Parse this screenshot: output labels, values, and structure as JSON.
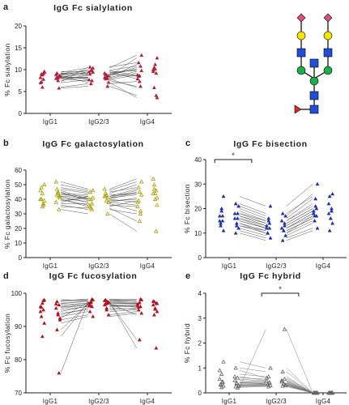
{
  "glycan_diagram": {
    "sialic_acid_color": "#e0507a",
    "galactose_color": "#f5e400",
    "glcnac_color": "#1f4fd8",
    "mannose_color": "#18b04a",
    "fucose_color": "#e0281e"
  },
  "chart_data": [
    {
      "type": "scatter",
      "panel": "a",
      "title": "IgG Fc sialylation",
      "ylabel": "% Fc sialylation",
      "categories": [
        "IgG1",
        "IgG2/3",
        "IgG4"
      ],
      "yticks": [
        0,
        5,
        10,
        15,
        20
      ],
      "ylim": [
        0,
        20
      ],
      "color": "#b0203a",
      "marker": "triangle",
      "series": [
        {
          "values": [
            9.6,
            9.2,
            8.8,
            8.5,
            8.2,
            8.0,
            7.8,
            7.5,
            9.0,
            8.7,
            9.4,
            8.3,
            6.0,
            5.8,
            7.0,
            8.9,
            9.1,
            8.1,
            7.2,
            8.4
          ]
        },
        {
          "values": [
            9.4,
            8.9,
            9.8,
            8.0,
            9.5,
            8.2,
            7.5,
            8.8,
            9.0,
            8.6,
            10.4,
            7.9,
            6.8,
            6.2,
            7.7,
            9.2,
            9.9,
            8.3,
            10.6,
            7.1
          ]
        },
        {
          "values": [
            9.8,
            10.5,
            8.6,
            9.2,
            7.9,
            9.6,
            6.2,
            10.2,
            8.5,
            12.7,
            13.3,
            5.9,
            7.3,
            4.1,
            8.8,
            10.0,
            10.8,
            11.2,
            11.6,
            3.6
          ]
        }
      ]
    },
    {
      "type": "scatter",
      "panel": "b",
      "title": "IgG Fc galactosylation",
      "ylabel": "% Fc galactosylation",
      "categories": [
        "IgG1",
        "IgG2/3",
        "IgG4"
      ],
      "yticks": [
        0,
        10,
        20,
        30,
        40,
        50,
        60
      ],
      "ylim": [
        0,
        60
      ],
      "color": "#a8a000",
      "marker": "open-triangle",
      "series": [
        {
          "values": [
            50,
            47,
            44,
            42,
            40,
            38,
            36,
            45,
            48,
            41,
            39,
            43,
            35,
            33,
            46,
            52,
            37,
            44,
            40,
            42
          ]
        },
        {
          "values": [
            46,
            44,
            40,
            41,
            36,
            42,
            33,
            39,
            45,
            38,
            41,
            42,
            34,
            30,
            40,
            47,
            37,
            43,
            35,
            38
          ]
        },
        {
          "values": [
            52,
            50,
            45,
            46,
            35,
            44,
            30,
            40,
            48,
            36,
            43,
            47,
            25,
            18,
            38,
            54,
            32,
            44,
            39,
            41
          ]
        }
      ]
    },
    {
      "type": "scatter",
      "panel": "c",
      "title": "IgG Fc bisection",
      "ylabel": "% Fc bisection",
      "categories": [
        "IgG1",
        "IgG2/3",
        "IgG4"
      ],
      "yticks": [
        0,
        10,
        20,
        30,
        40
      ],
      "ylim": [
        0,
        40
      ],
      "color": "#1f2fa8",
      "marker": "triangle",
      "significance": [
        {
          "from": 0,
          "to": 1,
          "label": "*"
        }
      ],
      "series": [
        {
          "values": [
            25,
            22,
            19,
            18,
            17,
            16,
            15,
            14,
            13,
            12,
            11,
            10,
            20,
            16,
            15,
            18,
            17,
            13,
            14,
            21
          ]
        },
        {
          "values": [
            21,
            18,
            15,
            14,
            13,
            12,
            12,
            11,
            10,
            9,
            8,
            7,
            16,
            13,
            12,
            15,
            14,
            11,
            10,
            17
          ]
        },
        {
          "values": [
            30,
            25,
            21,
            20,
            19,
            18,
            17,
            16,
            15,
            14,
            12,
            11,
            24,
            19,
            18,
            22,
            20,
            16,
            17,
            26
          ]
        }
      ]
    },
    {
      "type": "scatter",
      "panel": "d",
      "title": "IgG Fc fucosylation",
      "ylabel": "% Fc fucosylation",
      "categories": [
        "IgG1",
        "IgG2/3",
        "IgG4"
      ],
      "yticks": [
        70,
        80,
        90,
        100
      ],
      "ylim": [
        70,
        100
      ],
      "color": "#b0101e",
      "marker": "triangle",
      "series": [
        {
          "values": [
            98,
            97.5,
            97,
            96.5,
            96,
            95.5,
            95,
            94,
            93,
            92,
            91,
            89,
            87,
            76,
            94.5,
            96.8,
            97.8,
            93.5,
            95.8,
            92.5
          ]
        },
        {
          "values": [
            98,
            98,
            97.5,
            97,
            97,
            96.5,
            96,
            95,
            94.5,
            93.5,
            93,
            96.8,
            97.2,
            97.5,
            96.2,
            97.8,
            98.2,
            95.5,
            96.5,
            97.3
          ]
        },
        {
          "values": [
            98,
            97.5,
            97.2,
            97,
            96.8,
            96.5,
            96,
            95.5,
            95,
            94.5,
            94,
            93.5,
            86,
            83.5,
            96.2,
            97.6,
            98.2,
            95.2,
            95.8,
            96.9
          ]
        }
      ]
    },
    {
      "type": "scatter",
      "panel": "e",
      "title": "IgG Fc hybrid",
      "ylabel": "% Fc hybrid",
      "categories": [
        "IgG1",
        "IgG2/3",
        "IgG4"
      ],
      "yticks": [
        0,
        1,
        2,
        3,
        4
      ],
      "ylim": [
        0,
        4
      ],
      "color": "#666666",
      "marker": "open-triangle",
      "significance": [
        {
          "from": 1,
          "to": 2,
          "label": "*"
        }
      ],
      "series": [
        {
          "values": [
            1.25,
            1.0,
            0.75,
            0.6,
            0.55,
            0.5,
            0.45,
            0.4,
            0.35,
            0.3,
            0.28,
            0.25,
            0.22,
            0.2,
            0.9,
            0.65,
            0.42,
            0.38,
            0.32,
            0.27
          ]
        },
        {
          "values": [
            1.0,
            0.85,
            0.65,
            0.55,
            0.48,
            0.45,
            0.42,
            0.38,
            0.35,
            0.32,
            0.3,
            0.28,
            0.25,
            2.55,
            0.6,
            0.5,
            0.4,
            0.36,
            0.33,
            0.29
          ]
        },
        {
          "values": [
            0.0,
            0.0,
            0.0,
            0.0,
            0.0,
            0.0,
            0.0,
            0.0,
            0.0,
            0.0,
            0.0,
            0.0,
            0.0,
            0.0,
            0.0,
            0.0,
            0.0,
            0.0,
            0.0,
            0.0
          ]
        }
      ]
    }
  ]
}
